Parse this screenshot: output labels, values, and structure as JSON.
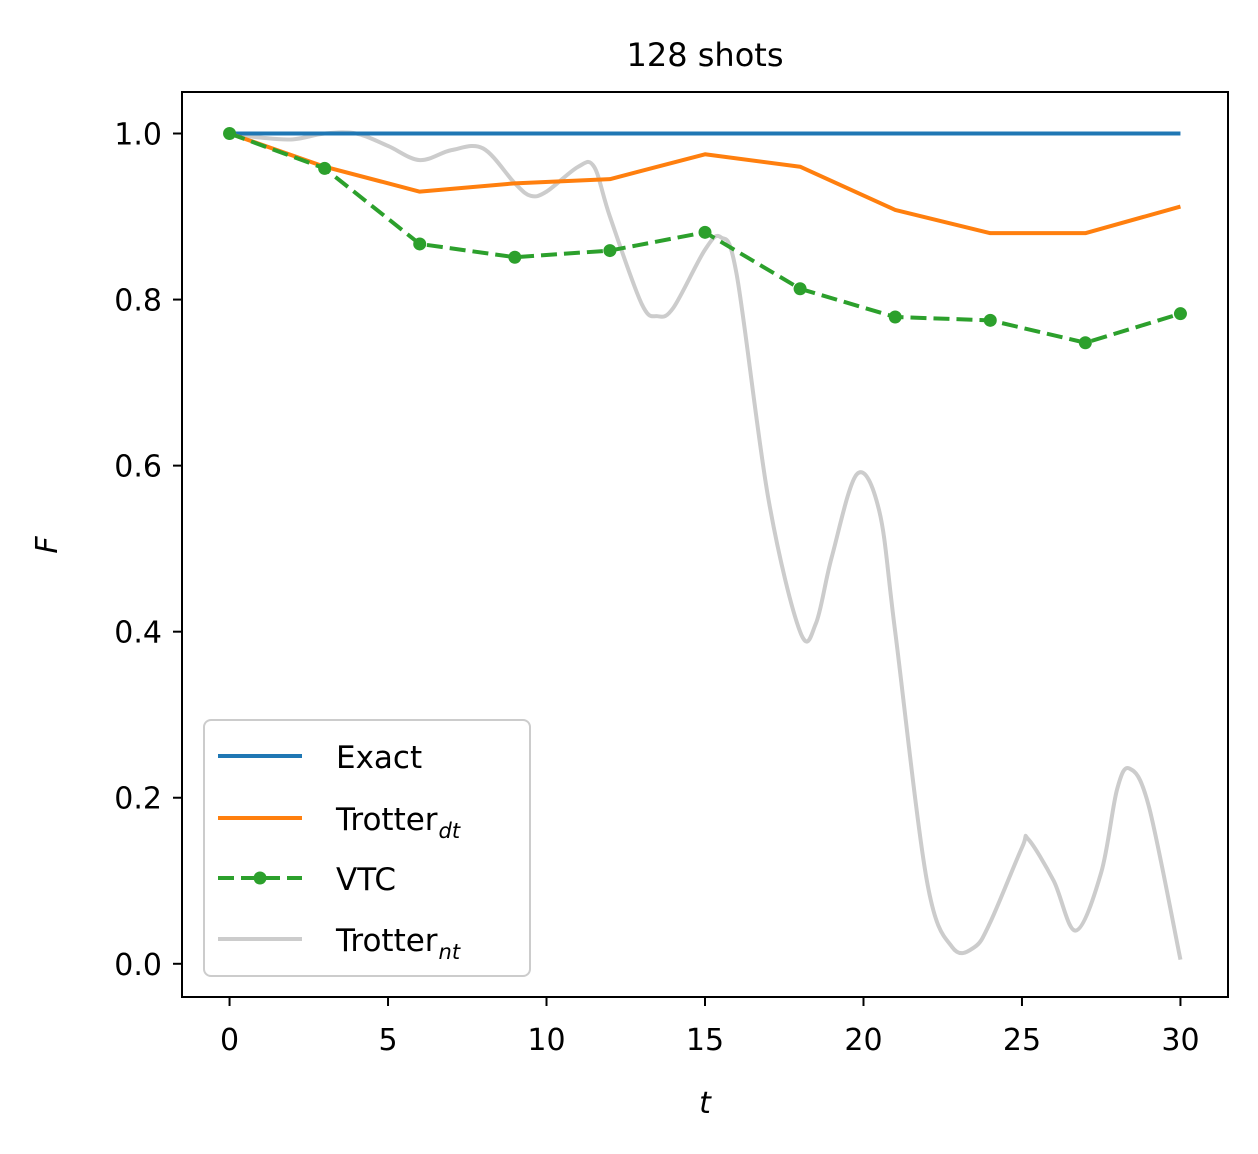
{
  "chart_data": {
    "type": "line",
    "title": "128 shots",
    "xlabel": "t",
    "ylabel": "F",
    "xlim": [
      -1.5,
      31.5
    ],
    "ylim": [
      -0.04,
      1.05
    ],
    "xticks": [
      0,
      5,
      10,
      15,
      20,
      25,
      30
    ],
    "xtick_labels": [
      "0",
      "5",
      "10",
      "15",
      "20",
      "25",
      "30"
    ],
    "yticks": [
      0.0,
      0.2,
      0.4,
      0.6,
      0.8,
      1.0
    ],
    "ytick_labels": [
      "0.0",
      "0.2",
      "0.4",
      "0.6",
      "0.8",
      "1.0"
    ],
    "grid": false,
    "legend_position": "lower-left",
    "series": [
      {
        "name": "Exact",
        "color": "#1f77b4",
        "style": "solid",
        "x": [
          0,
          30
        ],
        "y": [
          1.0,
          1.0
        ]
      },
      {
        "name": "Trotter",
        "subscript": "dt",
        "color": "#ff7f0e",
        "style": "solid",
        "x": [
          0,
          3,
          6,
          9,
          12,
          15,
          18,
          21,
          24,
          27,
          30
        ],
        "y": [
          1.0,
          0.96,
          0.93,
          0.94,
          0.945,
          0.975,
          0.96,
          0.908,
          0.88,
          0.88,
          0.912
        ]
      },
      {
        "name": "VTC",
        "color": "#2ca02c",
        "style": "dashed-markers",
        "x": [
          0,
          3,
          6,
          9,
          12,
          15,
          18,
          21,
          24,
          27,
          30
        ],
        "y": [
          1.0,
          0.958,
          0.867,
          0.851,
          0.859,
          0.881,
          0.813,
          0.779,
          0.775,
          0.748,
          0.783
        ]
      },
      {
        "name": "Trotter",
        "subscript": "nt",
        "color": "#cccccc",
        "style": "solid",
        "x": [
          0,
          1,
          2,
          3,
          4,
          5,
          6,
          7,
          8,
          9,
          9.5,
          10,
          11,
          11.5,
          12,
          13,
          13.5,
          14,
          15,
          15.5,
          16,
          17,
          18,
          18.5,
          19,
          19.8,
          20.5,
          21,
          22,
          22.8,
          23.5,
          24,
          25,
          25.2,
          26,
          26.7,
          27.5,
          28,
          28.4,
          29,
          30
        ],
        "y": [
          1.0,
          0.995,
          0.993,
          1.0,
          1.0,
          0.985,
          0.968,
          0.98,
          0.982,
          0.94,
          0.925,
          0.93,
          0.96,
          0.96,
          0.9,
          0.795,
          0.78,
          0.79,
          0.86,
          0.875,
          0.83,
          0.56,
          0.4,
          0.41,
          0.49,
          0.59,
          0.545,
          0.4,
          0.1,
          0.02,
          0.02,
          0.05,
          0.14,
          0.15,
          0.1,
          0.04,
          0.11,
          0.21,
          0.235,
          0.19,
          0.005
        ]
      }
    ]
  }
}
